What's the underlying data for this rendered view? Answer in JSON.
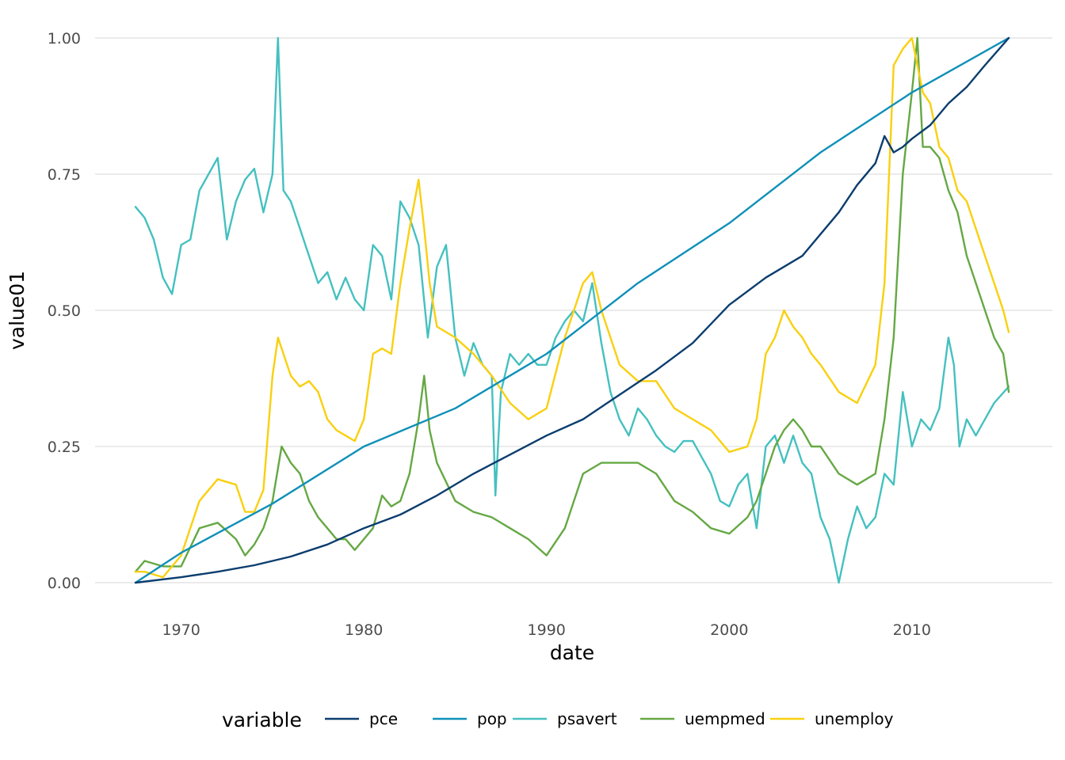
{
  "chart_data": {
    "type": "line",
    "xlabel": "date",
    "ylabel": "value01",
    "xlim": [
      1967.5,
      2015.3
    ],
    "ylim": [
      0,
      1
    ],
    "x_ticks": [
      1970,
      1980,
      1990,
      2000,
      2010
    ],
    "x_tick_labels": [
      "1970",
      "1980",
      "1990",
      "2000",
      "2010"
    ],
    "y_ticks": [
      0,
      0.25,
      0.5,
      0.75,
      1
    ],
    "y_tick_labels": [
      "0.00",
      "0.25",
      "0.50",
      "0.75",
      "1.00"
    ],
    "grid": true,
    "legend": {
      "title": "variable",
      "position": "bottom"
    },
    "series": [
      {
        "name": "pce",
        "color": "#0b3d6e",
        "x": [
          1967.5,
          1970,
          1972,
          1974,
          1976,
          1978,
          1980,
          1982,
          1984,
          1986,
          1988,
          1990,
          1992,
          1994,
          1996,
          1998,
          2000,
          2002,
          2004,
          2006,
          2007,
          2008,
          2008.5,
          2009,
          2009.5,
          2010,
          2011,
          2012,
          2013,
          2014,
          2015.3
        ],
        "y": [
          0,
          0.01,
          0.02,
          0.032,
          0.048,
          0.07,
          0.1,
          0.125,
          0.16,
          0.2,
          0.235,
          0.27,
          0.3,
          0.345,
          0.39,
          0.44,
          0.51,
          0.56,
          0.6,
          0.68,
          0.73,
          0.77,
          0.82,
          0.79,
          0.8,
          0.815,
          0.84,
          0.88,
          0.91,
          0.95,
          1.0
        ]
      },
      {
        "name": "pop",
        "color": "#0f90b8",
        "x": [
          1967.5,
          1970,
          1975,
          1980,
          1985,
          1990,
          1995,
          2000,
          2005,
          2010,
          2015.3
        ],
        "y": [
          0,
          0.055,
          0.145,
          0.25,
          0.32,
          0.42,
          0.55,
          0.66,
          0.79,
          0.9,
          1.0
        ]
      },
      {
        "name": "psavert",
        "color": "#45c0c0",
        "x": [
          1967.5,
          1968,
          1968.5,
          1969,
          1969.5,
          1970,
          1970.5,
          1971,
          1971.5,
          1972,
          1972.5,
          1973,
          1973.5,
          1974,
          1974.5,
          1975,
          1975.3,
          1975.6,
          1976,
          1976.5,
          1977,
          1977.5,
          1978,
          1978.5,
          1979,
          1979.5,
          1980,
          1980.5,
          1981,
          1981.5,
          1982,
          1982.5,
          1983,
          1983.5,
          1984,
          1984.5,
          1985,
          1985.5,
          1986,
          1986.5,
          1987,
          1987.2,
          1987.5,
          1988,
          1988.5,
          1989,
          1989.5,
          1990,
          1990.5,
          1991,
          1991.5,
          1992,
          1992.5,
          1993,
          1993.5,
          1994,
          1994.5,
          1995,
          1995.5,
          1996,
          1996.5,
          1997,
          1997.5,
          1998,
          1998.5,
          1999,
          1999.5,
          2000,
          2000.5,
          2001,
          2001.5,
          2002,
          2002.5,
          2003,
          2003.5,
          2004,
          2004.5,
          2005,
          2005.5,
          2006,
          2006.5,
          2007,
          2007.5,
          2008,
          2008.5,
          2009,
          2009.5,
          2010,
          2010.5,
          2011,
          2011.5,
          2012,
          2012.3,
          2012.6,
          2013,
          2013.5,
          2014,
          2014.5,
          2015.3
        ],
        "y": [
          0.69,
          0.67,
          0.63,
          0.56,
          0.53,
          0.62,
          0.63,
          0.72,
          0.75,
          0.78,
          0.63,
          0.7,
          0.74,
          0.76,
          0.68,
          0.75,
          1.0,
          0.72,
          0.7,
          0.65,
          0.6,
          0.55,
          0.57,
          0.52,
          0.56,
          0.52,
          0.5,
          0.62,
          0.6,
          0.52,
          0.7,
          0.67,
          0.62,
          0.45,
          0.58,
          0.62,
          0.45,
          0.38,
          0.44,
          0.4,
          0.38,
          0.16,
          0.35,
          0.42,
          0.4,
          0.42,
          0.4,
          0.4,
          0.45,
          0.48,
          0.5,
          0.48,
          0.55,
          0.44,
          0.35,
          0.3,
          0.27,
          0.32,
          0.3,
          0.27,
          0.25,
          0.24,
          0.26,
          0.26,
          0.23,
          0.2,
          0.15,
          0.14,
          0.18,
          0.2,
          0.1,
          0.25,
          0.27,
          0.22,
          0.27,
          0.22,
          0.2,
          0.12,
          0.08,
          0.0,
          0.08,
          0.14,
          0.1,
          0.12,
          0.2,
          0.18,
          0.35,
          0.25,
          0.3,
          0.28,
          0.32,
          0.45,
          0.4,
          0.25,
          0.3,
          0.27,
          0.3,
          0.33,
          0.36
        ]
      },
      {
        "name": "uempmed",
        "color": "#65a844",
        "x": [
          1967.5,
          1968,
          1969,
          1970,
          1971,
          1972,
          1973,
          1973.5,
          1974,
          1974.5,
          1975,
          1975.5,
          1976,
          1976.5,
          1977,
          1977.5,
          1978,
          1978.5,
          1979,
          1979.5,
          1980,
          1980.5,
          1981,
          1981.5,
          1982,
          1982.5,
          1983,
          1983.3,
          1983.6,
          1984,
          1985,
          1986,
          1987,
          1988,
          1989,
          1990,
          1991,
          1992,
          1993,
          1994,
          1995,
          1996,
          1997,
          1998,
          1999,
          2000,
          2001,
          2001.5,
          2002,
          2002.5,
          2003,
          2003.5,
          2004,
          2004.5,
          2005,
          2006,
          2007,
          2008,
          2008.5,
          2009,
          2009.5,
          2010,
          2010.3,
          2010.6,
          2011,
          2011.5,
          2012,
          2012.5,
          2013,
          2013.5,
          2014,
          2014.5,
          2015,
          2015.3
        ],
        "y": [
          0.02,
          0.04,
          0.03,
          0.03,
          0.1,
          0.11,
          0.08,
          0.05,
          0.07,
          0.1,
          0.15,
          0.25,
          0.22,
          0.2,
          0.15,
          0.12,
          0.1,
          0.08,
          0.08,
          0.06,
          0.08,
          0.1,
          0.16,
          0.14,
          0.15,
          0.2,
          0.3,
          0.38,
          0.28,
          0.22,
          0.15,
          0.13,
          0.12,
          0.1,
          0.08,
          0.05,
          0.1,
          0.2,
          0.22,
          0.22,
          0.22,
          0.2,
          0.15,
          0.13,
          0.1,
          0.09,
          0.12,
          0.15,
          0.2,
          0.25,
          0.28,
          0.3,
          0.28,
          0.25,
          0.25,
          0.2,
          0.18,
          0.2,
          0.3,
          0.45,
          0.75,
          0.9,
          1.0,
          0.8,
          0.8,
          0.78,
          0.72,
          0.68,
          0.6,
          0.55,
          0.5,
          0.45,
          0.42,
          0.35
        ]
      },
      {
        "name": "unemploy",
        "color": "#f9d00f",
        "x": [
          1967.5,
          1968,
          1969,
          1970,
          1971,
          1972,
          1973,
          1973.5,
          1974,
          1974.5,
          1975,
          1975.3,
          1975.6,
          1976,
          1976.5,
          1977,
          1977.5,
          1978,
          1978.5,
          1979,
          1979.5,
          1980,
          1980.5,
          1981,
          1981.5,
          1982,
          1982.5,
          1983,
          1983.3,
          1983.6,
          1984,
          1985,
          1986,
          1987,
          1988,
          1989,
          1990,
          1991,
          1992,
          1992.5,
          1993,
          1993.5,
          1994,
          1995,
          1996,
          1997,
          1998,
          1999,
          2000,
          2001,
          2001.5,
          2002,
          2002.5,
          2003,
          2003.5,
          2004,
          2004.5,
          2005,
          2006,
          2007,
          2008,
          2008.5,
          2009,
          2009.5,
          2010,
          2010.3,
          2010.6,
          2011,
          2011.5,
          2012,
          2012.5,
          2013,
          2013.5,
          2014,
          2014.5,
          2015,
          2015.3
        ],
        "y": [
          0.02,
          0.02,
          0.01,
          0.05,
          0.15,
          0.19,
          0.18,
          0.13,
          0.13,
          0.17,
          0.38,
          0.45,
          0.42,
          0.38,
          0.36,
          0.37,
          0.35,
          0.3,
          0.28,
          0.27,
          0.26,
          0.3,
          0.42,
          0.43,
          0.42,
          0.55,
          0.65,
          0.74,
          0.65,
          0.55,
          0.47,
          0.45,
          0.42,
          0.38,
          0.33,
          0.3,
          0.32,
          0.45,
          0.55,
          0.57,
          0.5,
          0.45,
          0.4,
          0.37,
          0.37,
          0.32,
          0.3,
          0.28,
          0.24,
          0.25,
          0.3,
          0.42,
          0.45,
          0.5,
          0.47,
          0.45,
          0.42,
          0.4,
          0.35,
          0.33,
          0.4,
          0.55,
          0.95,
          0.98,
          1.0,
          0.95,
          0.9,
          0.88,
          0.8,
          0.78,
          0.72,
          0.7,
          0.65,
          0.6,
          0.55,
          0.5,
          0.46
        ]
      }
    ]
  }
}
